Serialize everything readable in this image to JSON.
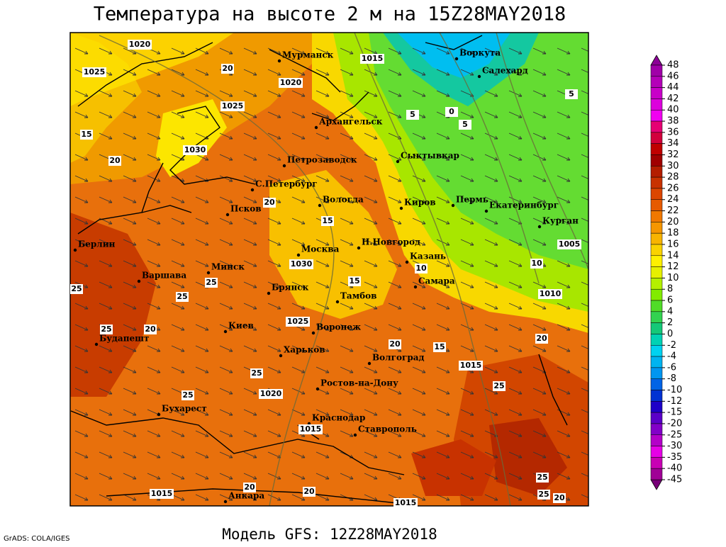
{
  "header": {
    "title": "Температура на высоте 2 м на 15Z28MAY2018"
  },
  "footer": {
    "model": "Модель GFS: 12Z28MAY2018",
    "credit": "GrADS: COLA/IGES"
  },
  "cities": [
    "Мурманск",
    "Воркута",
    "Салехард",
    "Архангельск",
    "Сыктывкар",
    "Петрозаводск",
    "С.Петербург",
    "Вологда",
    "Киров",
    "Пермь",
    "Екатеринбург",
    "Курган",
    "Псков",
    "Н.Новгород",
    "Казань",
    "Москва",
    "Берлин",
    "Минск",
    "Варшава",
    "Брянск",
    "Тамбов",
    "Самара",
    "Киев",
    "Воронеж",
    "Будапешт",
    "Харьков",
    "Волгоград",
    "Ростов-на-Дону",
    "Бухарест",
    "Краснодар",
    "Ставрополь",
    "Анкара"
  ],
  "pressure_labels": [
    1020,
    1025,
    1015,
    1020,
    1025,
    1030,
    1030,
    1025,
    1020,
    1015,
    1015,
    1010,
    1005,
    1015,
    1015
  ],
  "temperature_labels": [
    20,
    20,
    15,
    15,
    25,
    25,
    25,
    25,
    20,
    25,
    25,
    20,
    15,
    25,
    20,
    10,
    10,
    5,
    5,
    0,
    5,
    15,
    20,
    25,
    25,
    20,
    20,
    20
  ],
  "colorbar": {
    "levels": [
      48,
      46,
      44,
      42,
      40,
      38,
      36,
      34,
      32,
      30,
      28,
      26,
      24,
      22,
      20,
      18,
      16,
      14,
      12,
      10,
      8,
      6,
      4,
      2,
      0,
      -2,
      -4,
      -6,
      -8,
      -10,
      -12,
      -15,
      -20,
      -25,
      -30,
      -35,
      -40,
      -45
    ],
    "colors": [
      "#8c0096",
      "#a000a8",
      "#b400b8",
      "#c800c8",
      "#dc00dc",
      "#f000f0",
      "#e60073",
      "#d2003c",
      "#c00000",
      "#a00000",
      "#b41e00",
      "#c83200",
      "#dc4600",
      "#e65a00",
      "#f07800",
      "#f59600",
      "#f8b400",
      "#fad200",
      "#fff000",
      "#e6f000",
      "#b4f000",
      "#82eb00",
      "#50dc28",
      "#32d250",
      "#14c878",
      "#00d2b4",
      "#00d2f0",
      "#00b4f0",
      "#0096f0",
      "#0064e6",
      "#0032d2",
      "#1e00c8",
      "#5a00c8",
      "#8200c8",
      "#b400c8",
      "#e600e6",
      "#c800b4",
      "#a00096",
      "#780078"
    ]
  }
}
